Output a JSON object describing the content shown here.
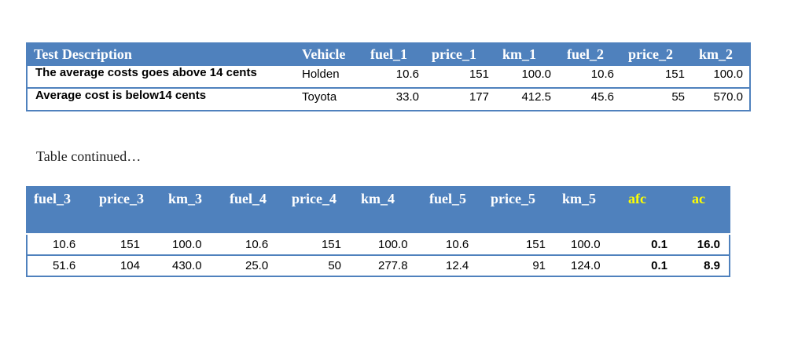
{
  "table1": {
    "headers": [
      "Test Description",
      "Vehicle",
      "fuel_1",
      "price_1",
      "km_1",
      "fuel_2",
      "price_2",
      "km_2"
    ],
    "rows": [
      [
        "The average costs goes above 14 cents",
        "Holden",
        "10.6",
        "151",
        "100.0",
        "10.6",
        "151",
        "100.0"
      ],
      [
        "Average cost is below14  cents",
        "Toyota",
        "33.0",
        "177",
        "412.5",
        "45.6",
        "55",
        "570.0"
      ]
    ]
  },
  "caption": "Table continued…",
  "table2": {
    "headers": [
      "fuel_3",
      "price_3",
      "km_3",
      "fuel_4",
      "price_4",
      "km_4",
      "fuel_5",
      "price_5",
      "km_5",
      "afc",
      "ac"
    ],
    "rows": [
      [
        "10.6",
        "151",
        "100.0",
        "10.6",
        "151",
        "100.0",
        "10.6",
        "151",
        "100.0",
        "0.1",
        "16.0"
      ],
      [
        "51.6",
        "104",
        "430.0",
        "25.0",
        "50",
        "277.8",
        "12.4",
        "91",
        "124.0",
        "0.1",
        "8.9"
      ]
    ]
  }
}
